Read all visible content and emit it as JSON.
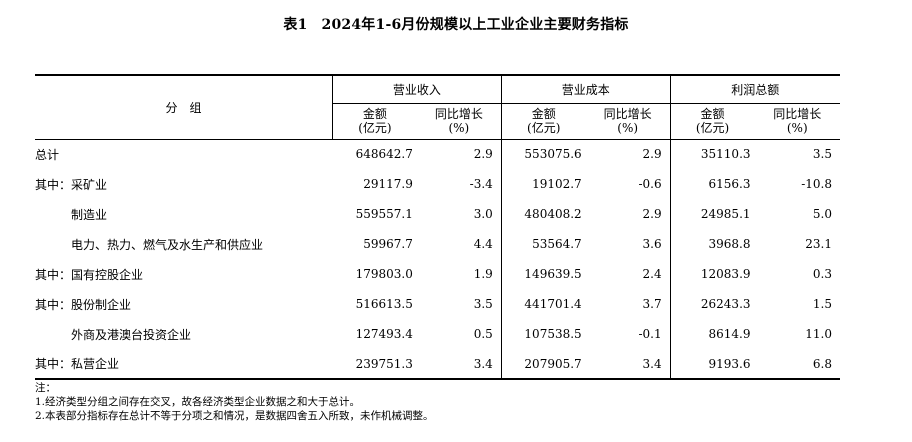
{
  "title": {
    "table_no": "表1",
    "text": "2024年1-6月份规模以上工业企业主要财务指标"
  },
  "header": {
    "group_label": "分　组",
    "groups": [
      "营业收入",
      "营业成本",
      "利润总额"
    ],
    "amount_label": "金额",
    "amount_unit": "(亿元)",
    "growth_label": "同比增长",
    "growth_unit": "(%)"
  },
  "rows": [
    {
      "name": "总计",
      "indent": false,
      "rev": "648642.7",
      "rev_g": "2.9",
      "cost": "553075.6",
      "cost_g": "2.9",
      "profit": "35110.3",
      "profit_g": "3.5"
    },
    {
      "name": "其中：采矿业",
      "indent": false,
      "rev": "29117.9",
      "rev_g": "-3.4",
      "cost": "19102.7",
      "cost_g": "-0.6",
      "profit": "6156.3",
      "profit_g": "-10.8"
    },
    {
      "name": "制造业",
      "indent": true,
      "rev": "559557.1",
      "rev_g": "3.0",
      "cost": "480408.2",
      "cost_g": "2.9",
      "profit": "24985.1",
      "profit_g": "5.0"
    },
    {
      "name": "电力、热力、燃气及水生产和供应业",
      "indent": true,
      "rev": "59967.7",
      "rev_g": "4.4",
      "cost": "53564.7",
      "cost_g": "3.6",
      "profit": "3968.8",
      "profit_g": "23.1"
    },
    {
      "name": "其中：国有控股企业",
      "indent": false,
      "rev": "179803.0",
      "rev_g": "1.9",
      "cost": "149639.5",
      "cost_g": "2.4",
      "profit": "12083.9",
      "profit_g": "0.3"
    },
    {
      "name": "其中：股份制企业",
      "indent": false,
      "rev": "516613.5",
      "rev_g": "3.5",
      "cost": "441701.4",
      "cost_g": "3.7",
      "profit": "26243.3",
      "profit_g": "1.5"
    },
    {
      "name": "外商及港澳台投资企业",
      "indent": true,
      "rev": "127493.4",
      "rev_g": "0.5",
      "cost": "107538.5",
      "cost_g": "-0.1",
      "profit": "8614.9",
      "profit_g": "11.0"
    },
    {
      "name": "其中：私营企业",
      "indent": false,
      "rev": "239751.3",
      "rev_g": "3.4",
      "cost": "207905.7",
      "cost_g": "3.4",
      "profit": "9193.6",
      "profit_g": "6.8"
    }
  ],
  "notes": [
    "注：",
    "1.经济类型分组之间存在交叉，故各经济类型企业数据之和大于总计。",
    "2.本表部分指标存在总计不等于分项之和情况，是数据四舍五入所致，未作机械调整。"
  ]
}
